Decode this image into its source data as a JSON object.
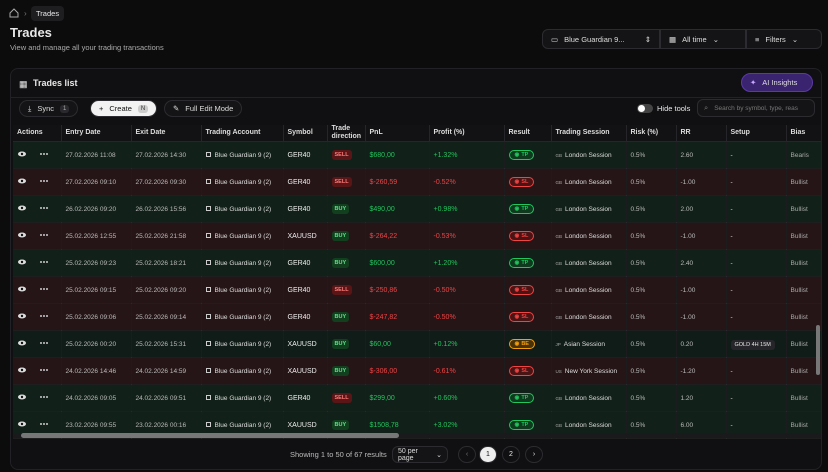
{
  "breadcrumb": "Trades",
  "header": {
    "title": "Trades",
    "subtitle": "View and manage all your trading transactions"
  },
  "filters": {
    "account": "Blue Guardian 9...",
    "period": "All time",
    "filters": "Filters"
  },
  "card": {
    "title": "Trades list",
    "ai": "AI Insights",
    "sync": "Sync",
    "sync_badge": "1",
    "create": "Create",
    "create_key": "N",
    "edit_mode": "Full Edit Mode",
    "hide_tools": "Hide tools",
    "search_placeholder": "Search by symbol, type, reas"
  },
  "table": {
    "columns": [
      "Actions",
      "Entry Date",
      "Exit Date",
      "Trading Account",
      "Symbol",
      "Trade direction",
      "PnL",
      "Profit (%)",
      "Result",
      "Trading Session",
      "Risk (%)",
      "RR",
      "Setup",
      "Bias"
    ],
    "rows": [
      {
        "entry": "27.02.2026 11:08",
        "exit": "27.02.2026 14:30",
        "account": "Blue Guardian 9 (2)",
        "symbol": "GER40",
        "direction": "SELL",
        "pnl": "$680,00",
        "profit": "+1.32%",
        "result": "TP",
        "flag": "GB",
        "session": "London Session",
        "risk": "0.5%",
        "rr": "2.60",
        "setup": "-",
        "bias": "Bearis"
      },
      {
        "entry": "27.02.2026 09:10",
        "exit": "27.02.2026 09:30",
        "account": "Blue Guardian 9 (2)",
        "symbol": "GER40",
        "direction": "SELL",
        "pnl": "$-260,59",
        "profit": "-0.52%",
        "result": "SL",
        "flag": "GB",
        "session": "London Session",
        "risk": "0.5%",
        "rr": "-1.00",
        "setup": "-",
        "bias": "Bullist"
      },
      {
        "entry": "26.02.2026 09:20",
        "exit": "26.02.2026 15:56",
        "account": "Blue Guardian 9 (2)",
        "symbol": "GER40",
        "direction": "BUY",
        "pnl": "$490,00",
        "profit": "+0.98%",
        "result": "TP",
        "flag": "GB",
        "session": "London Session",
        "risk": "0.5%",
        "rr": "2.00",
        "setup": "-",
        "bias": "Bullist"
      },
      {
        "entry": "25.02.2026 12:55",
        "exit": "25.02.2026 21:58",
        "account": "Blue Guardian 9 (2)",
        "symbol": "XAUUSD",
        "direction": "BUY",
        "pnl": "$-264,22",
        "profit": "-0.53%",
        "result": "SL",
        "flag": "GB",
        "session": "London Session",
        "risk": "0.5%",
        "rr": "-1.00",
        "setup": "-",
        "bias": "Bullist"
      },
      {
        "entry": "25.02.2026 09:23",
        "exit": "25.02.2026 18:21",
        "account": "Blue Guardian 9 (2)",
        "symbol": "GER40",
        "direction": "BUY",
        "pnl": "$600,00",
        "profit": "+1.20%",
        "result": "TP",
        "flag": "GB",
        "session": "London Session",
        "risk": "0.5%",
        "rr": "2.40",
        "setup": "-",
        "bias": "Bullist"
      },
      {
        "entry": "25.02.2026 09:15",
        "exit": "25.02.2026 09:20",
        "account": "Blue Guardian 9 (2)",
        "symbol": "GER40",
        "direction": "SELL",
        "pnl": "$-250,86",
        "profit": "-0.50%",
        "result": "SL",
        "flag": "GB",
        "session": "London Session",
        "risk": "0.5%",
        "rr": "-1.00",
        "setup": "-",
        "bias": "Bullist"
      },
      {
        "entry": "25.02.2026 09:06",
        "exit": "25.02.2026 09:14",
        "account": "Blue Guardian 9 (2)",
        "symbol": "GER40",
        "direction": "BUY",
        "pnl": "$-247,82",
        "profit": "-0.50%",
        "result": "SL",
        "flag": "GB",
        "session": "London Session",
        "risk": "0.5%",
        "rr": "-1.00",
        "setup": "-",
        "bias": "Bullist"
      },
      {
        "entry": "25.02.2026 00:20",
        "exit": "25.02.2026 15:31",
        "account": "Blue Guardian 9 (2)",
        "symbol": "XAUUSD",
        "direction": "BUY",
        "pnl": "$60,00",
        "profit": "+0.12%",
        "result": "BE",
        "flag": "JP",
        "session": "Asian Session",
        "risk": "0.5%",
        "rr": "0.20",
        "setup": "GOLD 4H 15M",
        "bias": "Bullist"
      },
      {
        "entry": "24.02.2026 14:46",
        "exit": "24.02.2026 14:59",
        "account": "Blue Guardian 9 (2)",
        "symbol": "XAUUSD",
        "direction": "BUY",
        "pnl": "$-306,00",
        "profit": "-0.61%",
        "result": "SL",
        "flag": "US",
        "session": "New York Session",
        "risk": "0.5%",
        "rr": "-1.20",
        "setup": "-",
        "bias": "Bullist"
      },
      {
        "entry": "24.02.2026 09:05",
        "exit": "24.02.2026 09:51",
        "account": "Blue Guardian 9 (2)",
        "symbol": "GER40",
        "direction": "SELL",
        "pnl": "$299,00",
        "profit": "+0.60%",
        "result": "TP",
        "flag": "GB",
        "session": "London Session",
        "risk": "0.5%",
        "rr": "1.20",
        "setup": "-",
        "bias": "Bullist"
      },
      {
        "entry": "23.02.2026 09:55",
        "exit": "23.02.2026 00:16",
        "account": "Blue Guardian 9 (2)",
        "symbol": "XAUUSD",
        "direction": "BUY",
        "pnl": "$1508,78",
        "profit": "+3.02%",
        "result": "TP",
        "flag": "GB",
        "session": "London Session",
        "risk": "0.5%",
        "rr": "6.00",
        "setup": "-",
        "bias": "Bullist"
      }
    ]
  },
  "footer": {
    "summary": "Showing 1 to 50 of 67 results",
    "per_page": "50 per page",
    "pages": [
      "1",
      "2"
    ]
  }
}
